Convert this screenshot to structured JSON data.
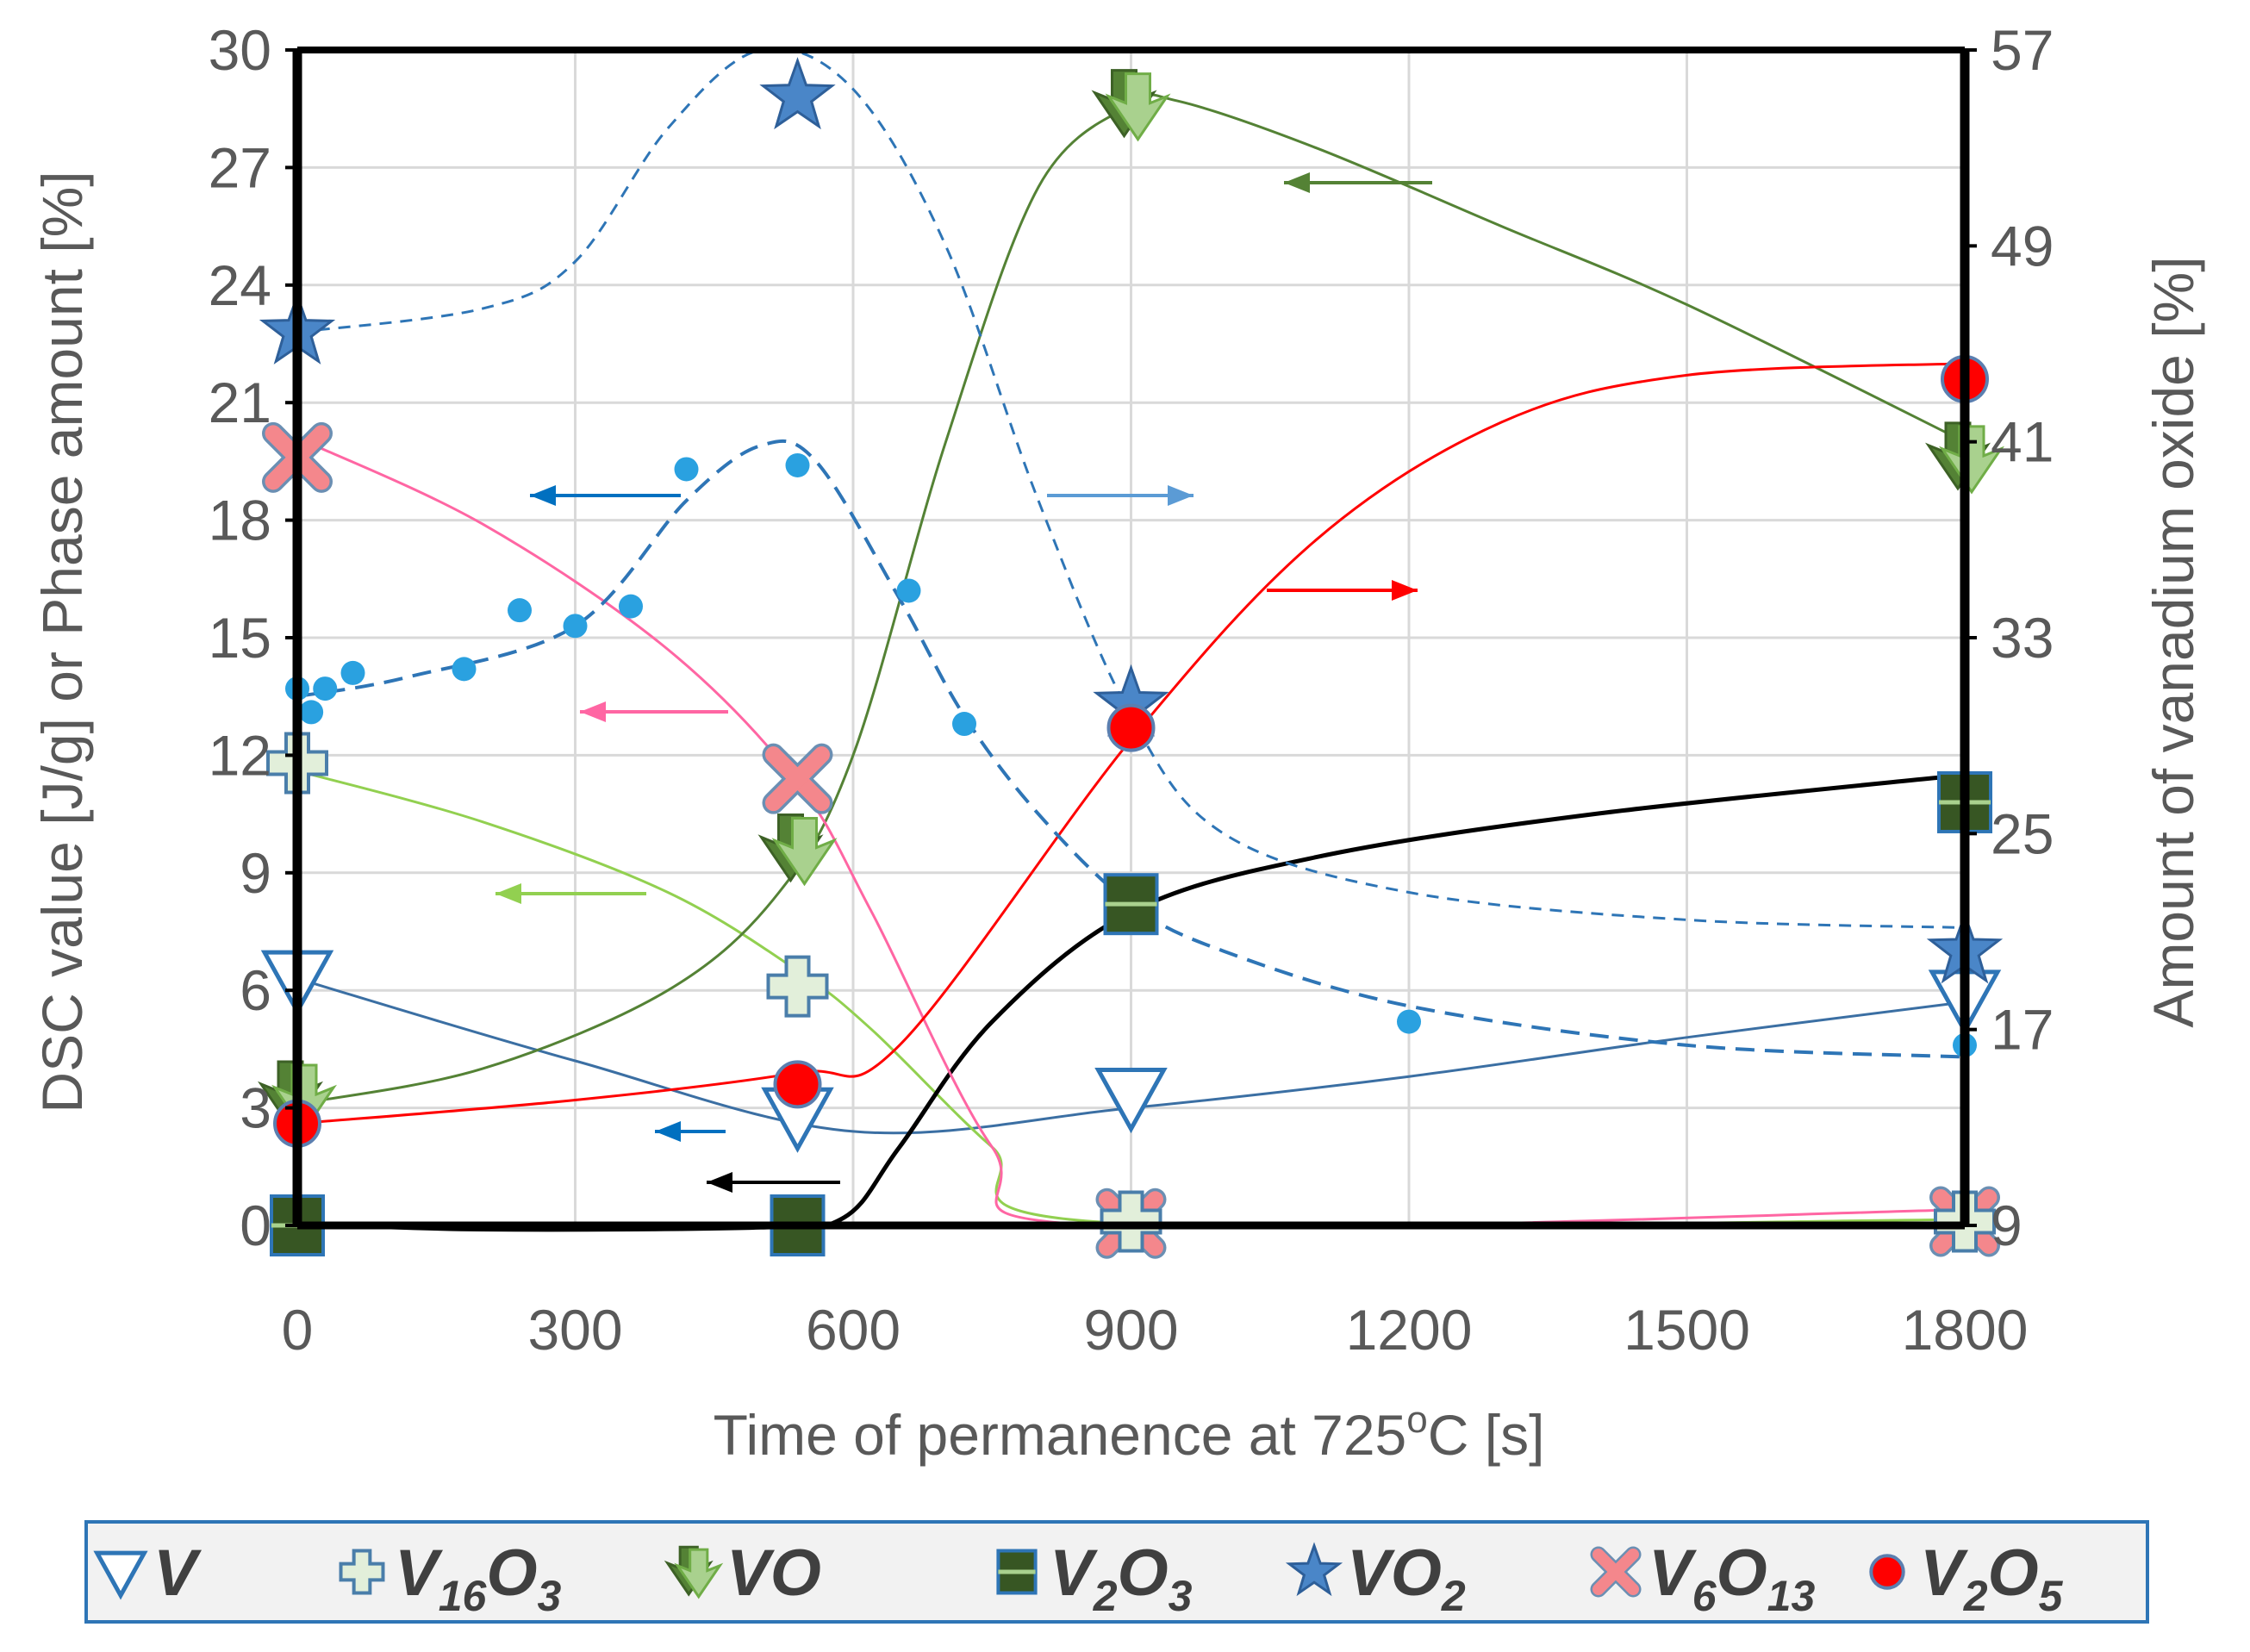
{
  "chart_data": {
    "type": "line",
    "x_axis": {
      "label": "Time of permanence at 725",
      "label_sup": "o",
      "label_suffix": "C   [s]",
      "range": [
        0,
        1800
      ],
      "ticks": [
        "0",
        "300",
        "600",
        "900",
        "1200",
        "1500",
        "1800"
      ]
    },
    "y_axis_left": {
      "label": "DSC value [J/g] or Phase amount [%]",
      "range": [
        0,
        30
      ],
      "ticks": [
        "0",
        "3",
        "6",
        "9",
        "12",
        "15",
        "18",
        "21",
        "24",
        "27",
        "30"
      ]
    },
    "y_axis_right": {
      "label": "Amount of vanadium oxide [%]",
      "range": [
        9,
        57
      ],
      "ticks": [
        "9",
        "17",
        "25",
        "33",
        "41",
        "49",
        "57"
      ]
    },
    "grid": true,
    "colors": {
      "V": "#2e75b6",
      "V16O3": "#92d050",
      "VO": "#548235",
      "V2O3": "#000000",
      "VO2": "#2e75b6",
      "V6O13": "#ff66a3",
      "V2O5": "#ff0000",
      "dsc": "#1f9fe0"
    },
    "series": [
      {
        "name": "V",
        "axis": "left",
        "marker": "triangle-down",
        "x": [
          0,
          540,
          900,
          1800
        ],
        "y": [
          6.3,
          2.8,
          3.3,
          5.8
        ],
        "trend": [
          [
            0,
            6.3
          ],
          [
            300,
            4.2
          ],
          [
            600,
            2.4
          ],
          [
            900,
            3.0
          ],
          [
            1200,
            3.8
          ],
          [
            1500,
            4.8
          ],
          [
            1800,
            5.7
          ]
        ]
      },
      {
        "name": "V16O3",
        "axis": "left",
        "marker": "cross",
        "x": [
          0,
          540,
          900,
          1800
        ],
        "y": [
          11.8,
          6.1,
          0.1,
          0.1
        ],
        "trend": [
          [
            0,
            11.6
          ],
          [
            200,
            10.3
          ],
          [
            400,
            8.5
          ],
          [
            540,
            6.5
          ],
          [
            620,
            5.0
          ],
          [
            750,
            2.0
          ],
          [
            860,
            0.1
          ],
          [
            1800,
            0.15
          ]
        ]
      },
      {
        "name": "VO",
        "axis": "left",
        "marker": "double-arrow",
        "x": [
          0,
          540,
          900,
          1800
        ],
        "y": [
          3.3,
          9.6,
          28.6,
          19.6
        ],
        "trend": [
          [
            0,
            3.1
          ],
          [
            200,
            4.0
          ],
          [
            400,
            6.0
          ],
          [
            520,
            8.5
          ],
          [
            600,
            12.0
          ],
          [
            700,
            20.0
          ],
          [
            800,
            26.5
          ],
          [
            900,
            28.6
          ],
          [
            950,
            28.7
          ],
          [
            1100,
            27.5
          ],
          [
            1300,
            25.5
          ],
          [
            1500,
            23.5
          ],
          [
            1800,
            20.0
          ]
        ]
      },
      {
        "name": "V2O3",
        "axis": "left",
        "marker": "bar",
        "x": [
          0,
          540,
          900,
          1800
        ],
        "y": [
          0,
          0,
          8.2,
          10.8
        ],
        "trend": [
          [
            0,
            0.05
          ],
          [
            200,
            -0.1
          ],
          [
            500,
            -0.05
          ],
          [
            590,
            0.2
          ],
          [
            650,
            2.0
          ],
          [
            750,
            5.2
          ],
          [
            900,
            8.0
          ],
          [
            1100,
            9.4
          ],
          [
            1400,
            10.5
          ],
          [
            1800,
            11.5
          ]
        ]
      },
      {
        "name": "VO2",
        "axis": "left",
        "marker": "star",
        "x": [
          0,
          540,
          900,
          1800
        ],
        "y": [
          22.8,
          28.8,
          13.3,
          7.0
        ],
        "trend": [
          [
            0,
            22.8
          ],
          [
            200,
            23.4
          ],
          [
            300,
            24.6
          ],
          [
            400,
            28.0
          ],
          [
            500,
            30.0
          ],
          [
            600,
            29.0
          ],
          [
            700,
            25.0
          ],
          [
            800,
            18.5
          ],
          [
            900,
            13.0
          ],
          [
            1000,
            10.0
          ],
          [
            1200,
            8.5
          ],
          [
            1500,
            7.8
          ],
          [
            1800,
            7.6
          ]
        ]
      },
      {
        "name": "V6O13",
        "axis": "left",
        "marker": "x",
        "x": [
          0,
          540,
          900,
          1800
        ],
        "y": [
          19.6,
          11.4,
          0.05,
          0.1
        ],
        "trend": [
          [
            0,
            20.1
          ],
          [
            200,
            17.9
          ],
          [
            400,
            14.7
          ],
          [
            540,
            11.3
          ],
          [
            620,
            8.0
          ],
          [
            750,
            2.0
          ],
          [
            860,
            0.0
          ],
          [
            1800,
            0.4
          ]
        ]
      },
      {
        "name": "V2O5",
        "axis": "left",
        "marker": "circle",
        "x": [
          0,
          540,
          900,
          1800
        ],
        "y": [
          2.6,
          3.6,
          12.7,
          21.6
        ],
        "trend": [
          [
            0,
            2.6
          ],
          [
            300,
            3.2
          ],
          [
            540,
            3.9
          ],
          [
            650,
            4.6
          ],
          [
            900,
            12.4
          ],
          [
            1100,
            17.5
          ],
          [
            1300,
            20.5
          ],
          [
            1500,
            21.7
          ],
          [
            1800,
            22.0
          ]
        ]
      },
      {
        "name": "DSC",
        "axis": "left",
        "marker": "dot",
        "x": [
          0,
          15,
          30,
          60,
          180,
          240,
          300,
          360,
          420,
          540,
          660,
          720,
          900,
          1200,
          1800
        ],
        "y": [
          13.7,
          13.1,
          13.7,
          14.1,
          14.2,
          15.7,
          15.3,
          15.8,
          19.3,
          19.4,
          16.2,
          12.8,
          8.4,
          5.2,
          4.6
        ],
        "trend": [
          [
            0,
            13.5
          ],
          [
            120,
            14.0
          ],
          [
            300,
            15.3
          ],
          [
            420,
            18.5
          ],
          [
            500,
            19.9
          ],
          [
            560,
            19.5
          ],
          [
            650,
            16.0
          ],
          [
            720,
            13.0
          ],
          [
            800,
            10.5
          ],
          [
            900,
            8.2
          ],
          [
            1000,
            7.0
          ],
          [
            1200,
            5.6
          ],
          [
            1500,
            4.6
          ],
          [
            1800,
            4.3
          ]
        ]
      }
    ],
    "legend": {
      "position": "bottom",
      "items": [
        {
          "base": "V",
          "sub": "",
          "mid": "",
          "sub2": ""
        },
        {
          "base": "V",
          "sub": "16",
          "mid": "O",
          "sub2": "3"
        },
        {
          "base": "VO",
          "sub": "",
          "mid": "",
          "sub2": ""
        },
        {
          "base": "V",
          "sub": "2",
          "mid": "O",
          "sub2": "3"
        },
        {
          "base": "VO",
          "sub": "2",
          "mid": "",
          "sub2": ""
        },
        {
          "base": "V",
          "sub": "6",
          "mid": "O",
          "sub2": "13"
        },
        {
          "base": "V",
          "sub": "2",
          "mid": "O",
          "sub2": "5"
        }
      ]
    }
  }
}
